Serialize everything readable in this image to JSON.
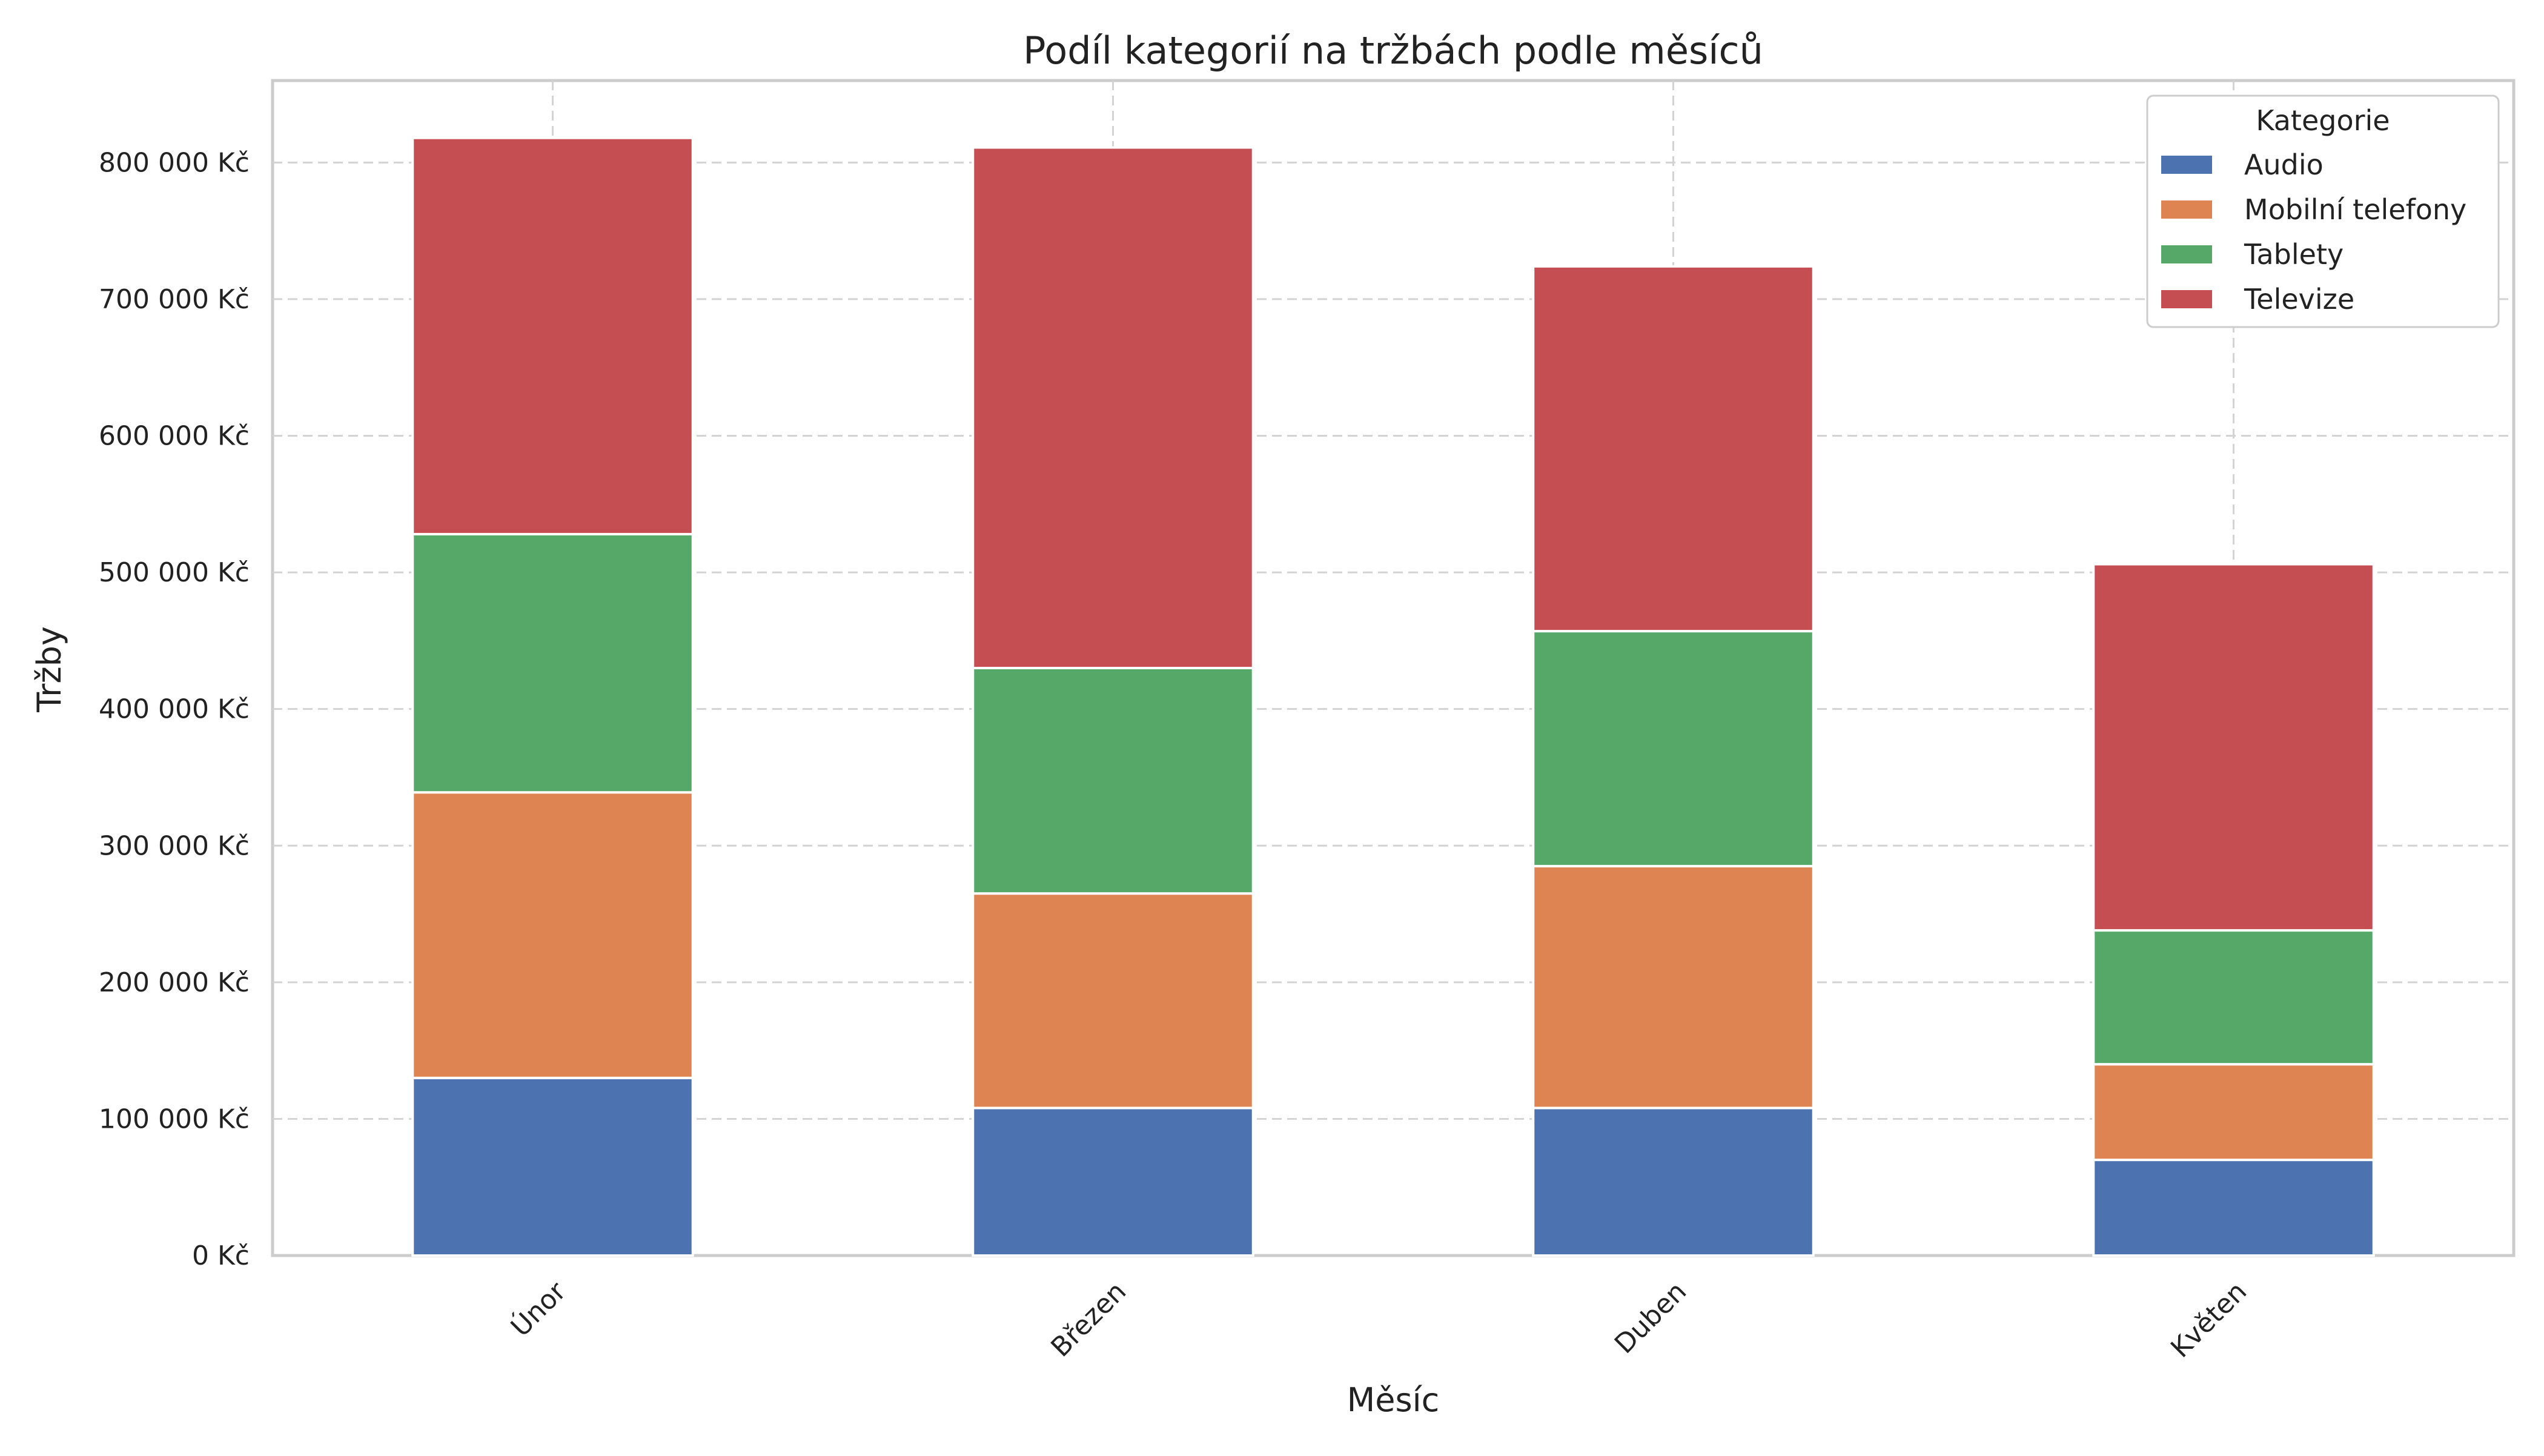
{
  "chart_data": {
    "type": "bar",
    "stacked": true,
    "title": "Podíl kategorií na tržbách podle měsíců",
    "xlabel": "Měsíc",
    "ylabel": "Tržby",
    "categories": [
      "Únor",
      "Březen",
      "Duben",
      "Květen"
    ],
    "series": [
      {
        "name": "Audio",
        "color": "#4c72b0",
        "values": [
          130000,
          108000,
          108000,
          70000
        ]
      },
      {
        "name": "Mobilní telefony",
        "color": "#dd8452",
        "values": [
          209000,
          157000,
          177000,
          70000
        ]
      },
      {
        "name": "Tablety",
        "color": "#55a868",
        "values": [
          189000,
          165000,
          172000,
          98000
        ]
      },
      {
        "name": "Televize",
        "color": "#c44e52",
        "values": [
          290000,
          381000,
          267000,
          268000
        ]
      }
    ],
    "ylim": [
      0,
      860000
    ],
    "yticks": [
      0,
      100000,
      200000,
      300000,
      400000,
      500000,
      600000,
      700000,
      800000
    ],
    "ytick_labels": [
      "0 Kč",
      "100 000 Kč",
      "200 000 Kč",
      "300 000 Kč",
      "400 000 Kč",
      "500 000 Kč",
      "600 000 Kč",
      "700 000 Kč",
      "800 000 Kč"
    ],
    "legend_title": "Kategorie",
    "legend_position": "top-right",
    "grid": true
  }
}
